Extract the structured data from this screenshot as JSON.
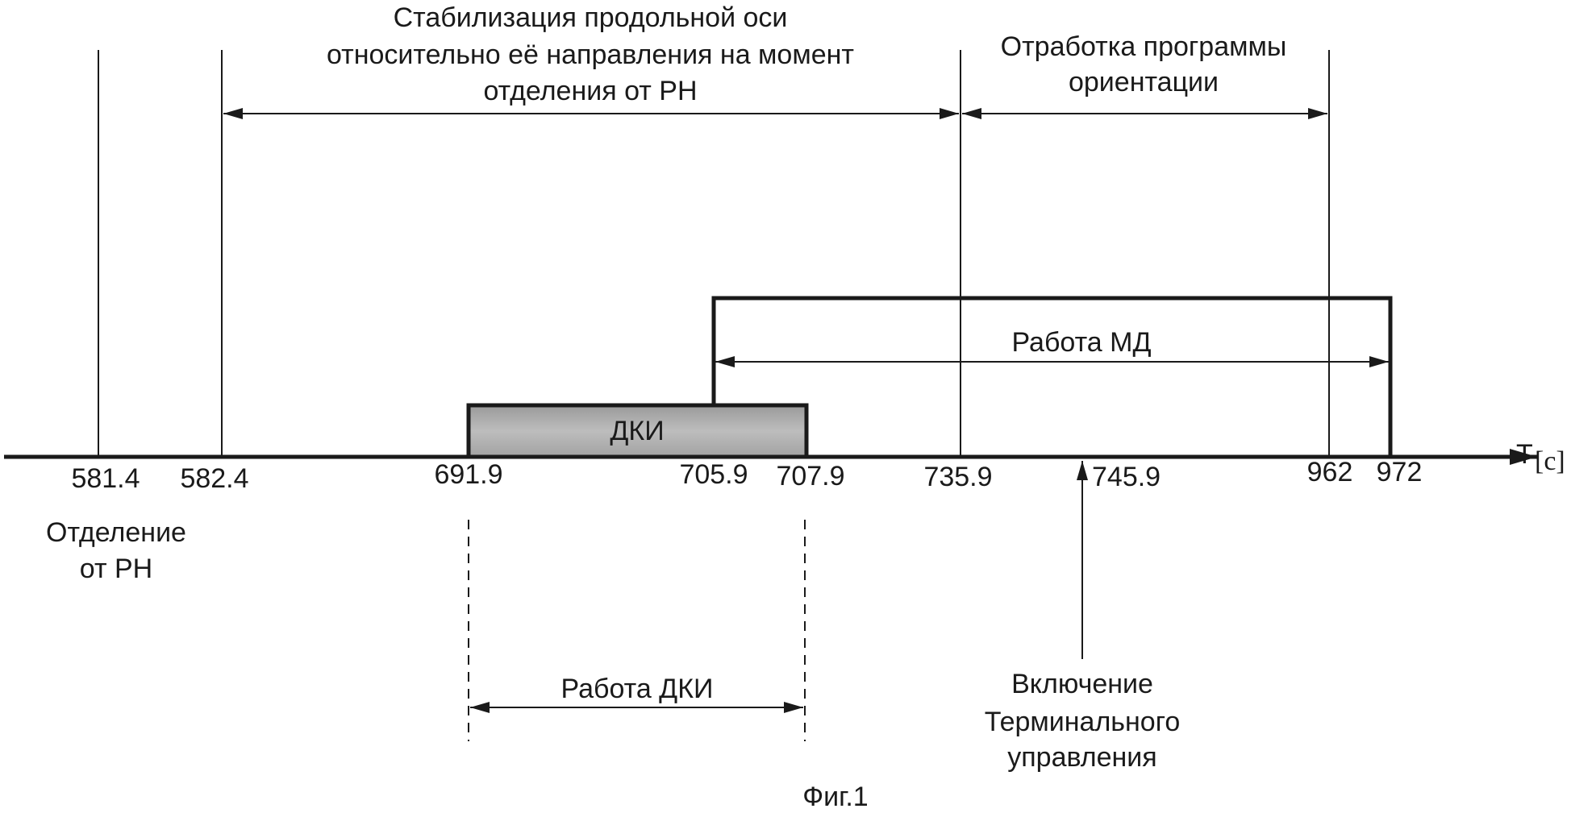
{
  "figure": {
    "caption": "Фиг.1",
    "axis": {
      "letter": "T",
      "unit": "[c]"
    }
  },
  "ticks": [
    {
      "value": "581.4"
    },
    {
      "value": "582.4"
    },
    {
      "value": "691.9"
    },
    {
      "value": "705.9"
    },
    {
      "value": "707.9"
    },
    {
      "value": "735.9"
    },
    {
      "value": "745.9"
    },
    {
      "value": "962"
    },
    {
      "value": "972"
    }
  ],
  "labels": {
    "stabilization": [
      "Стабилизация продольной оси",
      "относительно её направления на момент",
      "отделения от РН"
    ],
    "program": [
      "Отработка программы",
      "ориентации"
    ],
    "md_work": "Работа МД",
    "dki_box": "ДКИ",
    "separation": [
      "Отделение",
      "от РН"
    ],
    "dki_work": "Работа ДКИ",
    "terminal": [
      "Включение",
      "Терминального",
      "управления"
    ]
  },
  "colors": {
    "ink": "#1a1a1a",
    "dki_fill": "#b4b4b4"
  }
}
